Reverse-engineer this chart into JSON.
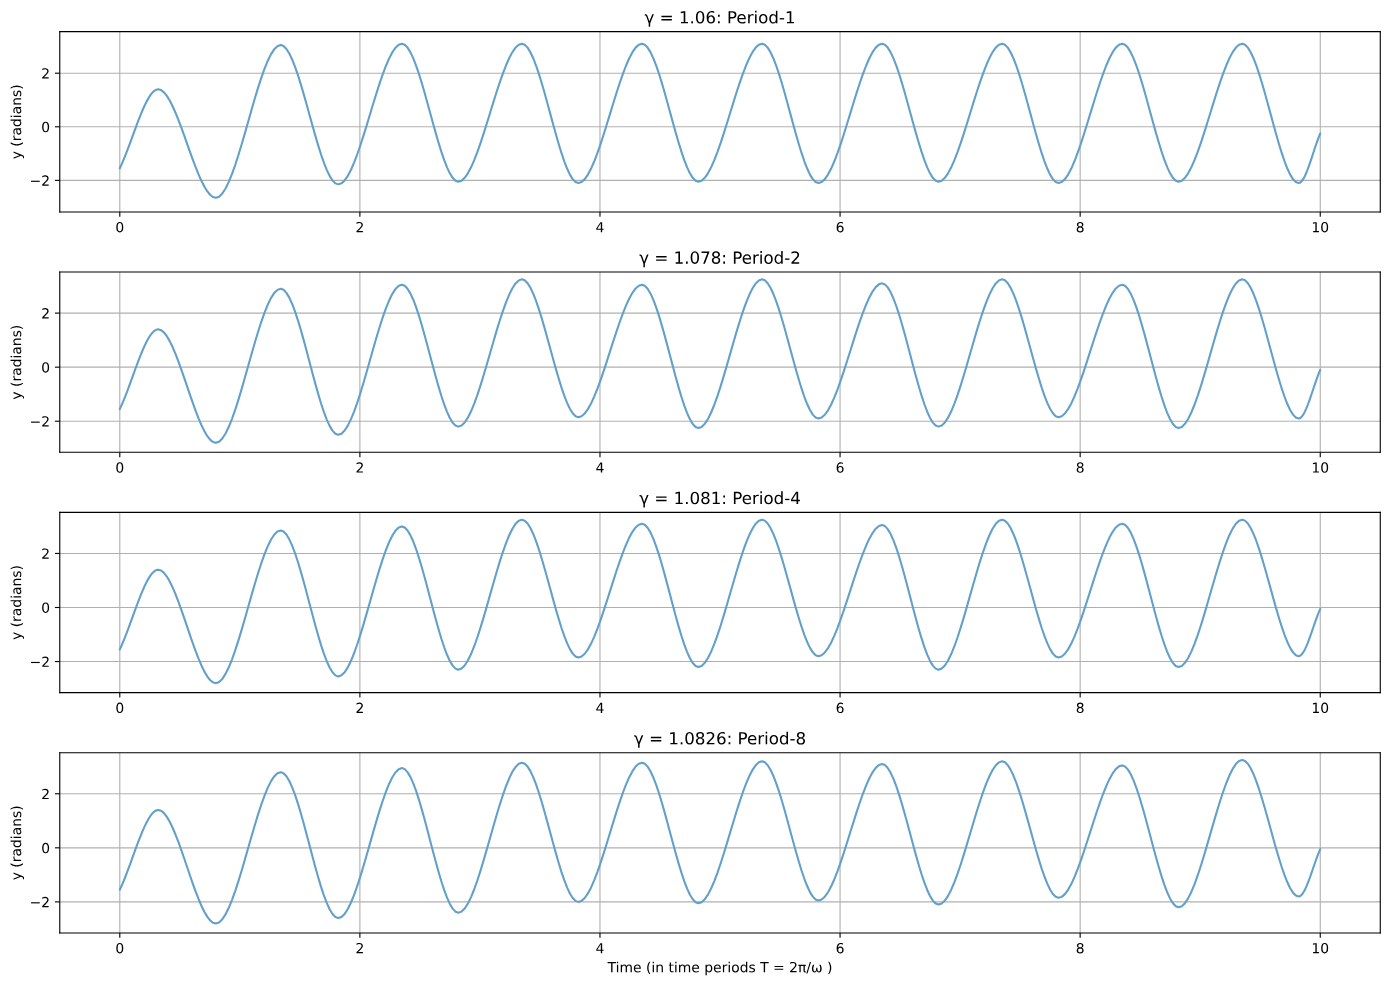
{
  "chart_data": [
    {
      "type": "line",
      "title": "γ = 1.06: Period-1",
      "ylabel": "y (radians)",
      "xlim": [
        -0.5,
        10.5
      ],
      "xticks": [
        0,
        2,
        4,
        6,
        8,
        10
      ],
      "ylim": [
        -3.18,
        3.55
      ],
      "yticks": [
        -2,
        0,
        2
      ],
      "grid": true,
      "series": [
        {
          "color": "#62a0ca",
          "x": [
            0,
            0.32,
            0.8,
            1.34,
            1.82,
            2.35,
            2.82,
            3.35,
            3.82,
            4.35,
            4.82,
            5.35,
            5.82,
            6.35,
            6.82,
            7.35,
            7.82,
            8.35,
            8.82,
            9.35,
            9.82,
            10.0
          ],
          "values": [
            -1.55,
            1.4,
            -2.65,
            3.05,
            -2.15,
            3.1,
            -2.05,
            3.1,
            -2.1,
            3.1,
            -2.05,
            3.1,
            -2.1,
            3.1,
            -2.05,
            3.1,
            -2.1,
            3.1,
            -2.05,
            3.1,
            -2.1,
            -0.25
          ]
        }
      ]
    },
    {
      "type": "line",
      "title": "γ = 1.078: Period-2",
      "ylabel": "y (radians)",
      "xlim": [
        -0.5,
        10.5
      ],
      "xticks": [
        0,
        2,
        4,
        6,
        8,
        10
      ],
      "ylim": [
        -3.15,
        3.52
      ],
      "yticks": [
        -2,
        0,
        2
      ],
      "grid": true,
      "series": [
        {
          "color": "#62a0ca",
          "x": [
            0,
            0.32,
            0.8,
            1.34,
            1.82,
            2.35,
            2.82,
            3.35,
            3.82,
            4.35,
            4.82,
            5.35,
            5.82,
            6.35,
            6.82,
            7.35,
            7.82,
            8.35,
            8.82,
            9.35,
            9.82,
            10.0
          ],
          "values": [
            -1.55,
            1.4,
            -2.8,
            2.9,
            -2.5,
            3.05,
            -2.2,
            3.25,
            -1.85,
            3.05,
            -2.25,
            3.25,
            -1.9,
            3.1,
            -2.2,
            3.25,
            -1.85,
            3.05,
            -2.25,
            3.25,
            -1.9,
            -0.1
          ]
        }
      ]
    },
    {
      "type": "line",
      "title": "γ = 1.081: Period-4",
      "ylabel": "y (radians)",
      "xlim": [
        -0.5,
        10.5
      ],
      "xticks": [
        0,
        2,
        4,
        6,
        8,
        10
      ],
      "ylim": [
        -3.15,
        3.52
      ],
      "yticks": [
        -2,
        0,
        2
      ],
      "grid": true,
      "series": [
        {
          "color": "#62a0ca",
          "x": [
            0,
            0.32,
            0.8,
            1.34,
            1.82,
            2.35,
            2.82,
            3.35,
            3.82,
            4.35,
            4.82,
            5.35,
            5.82,
            6.35,
            6.82,
            7.35,
            7.82,
            8.35,
            8.82,
            9.35,
            9.82,
            10.0
          ],
          "values": [
            -1.55,
            1.4,
            -2.8,
            2.85,
            -2.55,
            3.0,
            -2.3,
            3.25,
            -1.85,
            3.1,
            -2.2,
            3.25,
            -1.8,
            3.05,
            -2.3,
            3.25,
            -1.85,
            3.1,
            -2.2,
            3.25,
            -1.8,
            -0.05
          ]
        }
      ]
    },
    {
      "type": "line",
      "title": "γ = 1.0826: Period-8",
      "xlabel": "Time (in time periods T = 2π/ω )",
      "ylabel": "y (radians)",
      "xlim": [
        -0.5,
        10.5
      ],
      "xticks": [
        0,
        2,
        4,
        6,
        8,
        10
      ],
      "ylim": [
        -3.15,
        3.52
      ],
      "yticks": [
        -2,
        0,
        2
      ],
      "grid": true,
      "series": [
        {
          "color": "#62a0ca",
          "x": [
            0,
            0.32,
            0.8,
            1.34,
            1.82,
            2.35,
            2.82,
            3.35,
            3.82,
            4.35,
            4.82,
            5.35,
            5.82,
            6.35,
            6.82,
            7.35,
            7.82,
            8.35,
            8.82,
            9.35,
            9.82,
            10.0
          ],
          "values": [
            -1.55,
            1.4,
            -2.8,
            2.8,
            -2.6,
            2.95,
            -2.4,
            3.15,
            -2.0,
            3.15,
            -2.05,
            3.2,
            -1.95,
            3.1,
            -2.1,
            3.2,
            -1.85,
            3.05,
            -2.2,
            3.25,
            -1.8,
            -0.05
          ]
        }
      ]
    }
  ]
}
